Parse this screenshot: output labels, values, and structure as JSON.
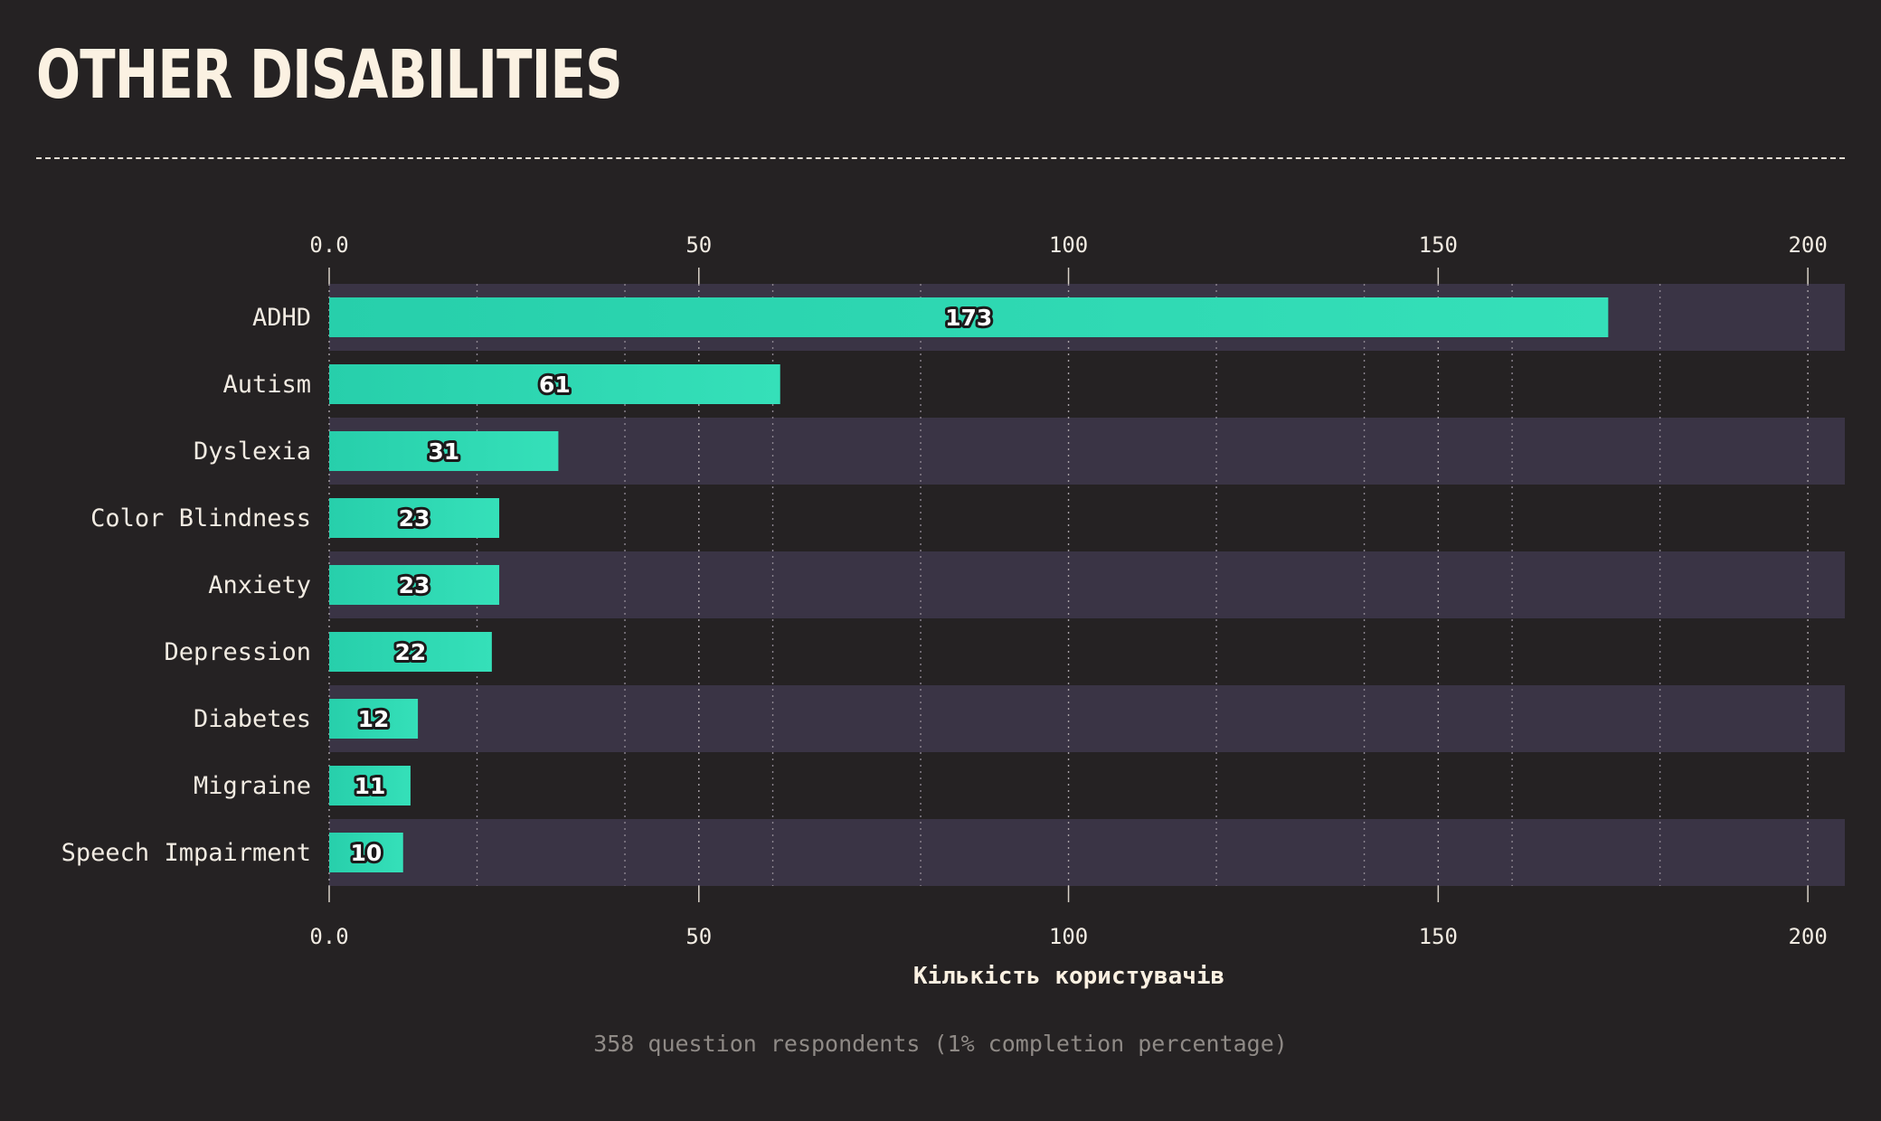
{
  "page": {
    "title": "OTHER DISABILITIES",
    "footer": "358 question respondents (1% completion percentage)"
  },
  "colors": {
    "background": "#252223",
    "band": "#3a3445",
    "bar_start": "#27cfab",
    "bar_end": "#35e0b9",
    "text": "#f1ebe2",
    "muted": "#8f8a86"
  },
  "chart_data": {
    "type": "bar",
    "orientation": "horizontal",
    "categories": [
      "ADHD",
      "Autism",
      "Dyslexia",
      "Color Blindness",
      "Anxiety",
      "Depression",
      "Diabetes",
      "Migraine",
      "Speech Impairment"
    ],
    "values": [
      173,
      61,
      31,
      23,
      23,
      22,
      12,
      11,
      10
    ],
    "xlabel": "Кількість користувачів",
    "ylabel": "",
    "xlim": [
      0,
      205
    ],
    "xticks": [
      0,
      50,
      100,
      150,
      200
    ],
    "xtick_labels": [
      "0.0",
      "50",
      "100",
      "150",
      "200"
    ],
    "minor_gridlines": [
      20,
      40,
      60,
      80,
      120,
      140,
      160,
      180
    ],
    "axis_position": "top-and-bottom",
    "grid": true,
    "legend": "none",
    "data_labels": true
  }
}
